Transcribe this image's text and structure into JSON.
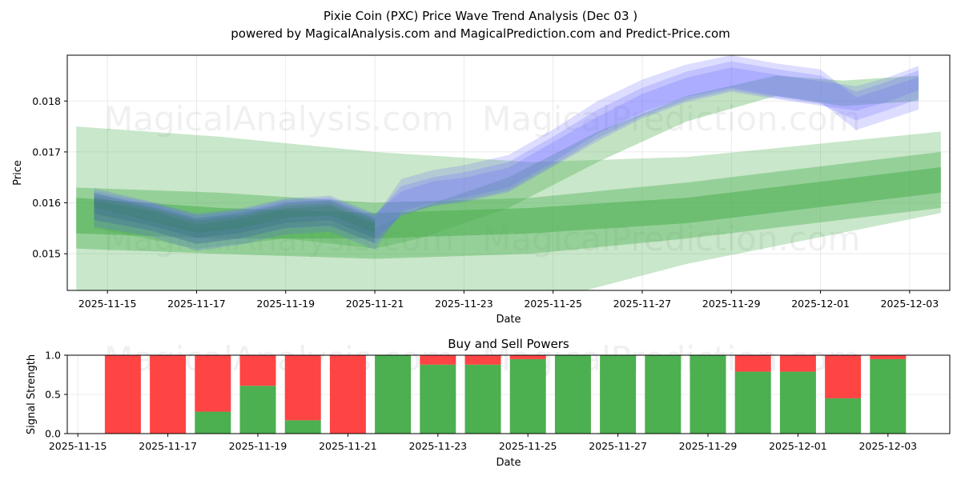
{
  "header": {
    "title": "Pixie Coin (PXC) Price Wave Trend Analysis (Dec 03 )",
    "subtitle": "powered by MagicalAnalysis.com and MagicalPrediction.com and Predict-Price.com"
  },
  "watermarks": [
    "MagicalAnalysis.com",
    "MagicalPrediction.com"
  ],
  "colors": {
    "buy": "#4caf50",
    "sell": "#ff4444",
    "band_green": "#4caf50",
    "band_blue": "#6666ff",
    "grid": "#e6e6e6"
  },
  "chart_data": [
    {
      "type": "area",
      "name": "price-wave",
      "xlabel": "Date",
      "ylabel": "Price",
      "ylim": [
        0.01428,
        0.0189
      ],
      "x_start": "2025-11-14",
      "x_tick_labels": [
        "2025-11-15",
        "2025-11-17",
        "2025-11-19",
        "2025-11-21",
        "2025-11-23",
        "2025-11-25",
        "2025-11-27",
        "2025-11-29",
        "2025-12-01",
        "2025-12-03"
      ],
      "x_tick_days": [
        1,
        3,
        5,
        7,
        9,
        11,
        13,
        15,
        17,
        19
      ],
      "y_ticks": [
        0.015,
        0.016,
        0.017,
        0.018
      ],
      "y_tick_labels": [
        "0.015",
        "0.016",
        "0.017",
        "0.018"
      ],
      "price_series": [
        {
          "name": "price-wave-1",
          "x": [
            0.7,
            2,
            3,
            4,
            5,
            6,
            7,
            7.6,
            8.3,
            9,
            10,
            11,
            12,
            13,
            14,
            15,
            16,
            17,
            17.8,
            18.5,
            19.2
          ],
          "y": [
            0.01595,
            0.01572,
            0.01548,
            0.01558,
            0.01578,
            0.01582,
            0.01548,
            0.01605,
            0.01622,
            0.01632,
            0.01652,
            0.01702,
            0.01755,
            0.01798,
            0.0183,
            0.0185,
            0.01835,
            0.01822,
            0.0179,
            0.0181,
            0.01832
          ],
          "width": 0.00028
        },
        {
          "name": "price-wave-2",
          "x": [
            0.7,
            2,
            3,
            4,
            5,
            6,
            7,
            7.6,
            8.3,
            9,
            10,
            11,
            12,
            13,
            14,
            15,
            16,
            17,
            17.8,
            18.5,
            19.2
          ],
          "y": [
            0.01585,
            0.01565,
            0.01538,
            0.0155,
            0.0157,
            0.01575,
            0.0154,
            0.01615,
            0.01632,
            0.01642,
            0.01662,
            0.01712,
            0.01768,
            0.0181,
            0.0184,
            0.01858,
            0.01842,
            0.0183,
            0.01775,
            0.01795,
            0.01815
          ],
          "width": 0.00032
        },
        {
          "name": "price-wave-3",
          "x": [
            0.7,
            2,
            3,
            4,
            5,
            6,
            7,
            7.6,
            8.3,
            9,
            10,
            11,
            12,
            13,
            14,
            15,
            16,
            17,
            17.8,
            18.5,
            19.2
          ],
          "y": [
            0.01605,
            0.01578,
            0.01555,
            0.01565,
            0.01585,
            0.0159,
            0.01555,
            0.01598,
            0.01618,
            0.01625,
            0.01645,
            0.01695,
            0.01745,
            0.0179,
            0.01822,
            0.01842,
            0.01828,
            0.01815,
            0.01805,
            0.01822,
            0.01845
          ],
          "width": 0.00024
        }
      ],
      "green_bands": [
        {
          "name": "long-range-band",
          "x": [
            0.3,
            3.5,
            7,
            10.5,
            14,
            19.7
          ],
          "lower": [
            0.0142,
            0.014,
            0.0138,
            0.014,
            0.0148,
            0.0158
          ],
          "upper": [
            0.0175,
            0.0173,
            0.017,
            0.0168,
            0.0169,
            0.0174
          ],
          "opacity": 0.3
        },
        {
          "name": "mid-range-band",
          "x": [
            0.3,
            3.5,
            7,
            10.5,
            14,
            19.7
          ],
          "lower": [
            0.0151,
            0.015,
            0.0149,
            0.015,
            0.0153,
            0.0159
          ],
          "upper": [
            0.0163,
            0.0162,
            0.016,
            0.0161,
            0.0164,
            0.017
          ],
          "opacity": 0.4
        },
        {
          "name": "core-band",
          "x": [
            0.3,
            3.5,
            7,
            10.5,
            14,
            19.7
          ],
          "lower": [
            0.0154,
            0.0153,
            0.0153,
            0.0154,
            0.0156,
            0.0162
          ],
          "upper": [
            0.0161,
            0.0159,
            0.0158,
            0.0159,
            0.0161,
            0.0167
          ],
          "opacity": 0.55
        },
        {
          "name": "trend-band-upper",
          "x": [
            0.7,
            3,
            5,
            7,
            8,
            10,
            12,
            14,
            16,
            17.5,
            19.2
          ],
          "lower": [
            0.0155,
            0.0151,
            0.0153,
            0.0151,
            0.0153,
            0.0159,
            0.0168,
            0.0176,
            0.0181,
            0.0179,
            0.018
          ],
          "upper": [
            0.0159,
            0.0155,
            0.0157,
            0.0155,
            0.0159,
            0.0165,
            0.0174,
            0.0181,
            0.0185,
            0.0184,
            0.0185
          ],
          "opacity": 0.35
        }
      ]
    },
    {
      "type": "bar",
      "name": "buy-sell-powers",
      "title": "Buy and Sell Powers",
      "xlabel": "Date",
      "ylabel": "Signal Strength",
      "ylim": [
        0,
        1
      ],
      "y_ticks": [
        0,
        0.5,
        1
      ],
      "y_tick_labels": [
        "0.0",
        "0.5",
        "1.0"
      ],
      "x_tick_labels": [
        "2025-11-15",
        "2025-11-17",
        "2025-11-19",
        "2025-11-21",
        "2025-11-23",
        "2025-11-25",
        "2025-11-27",
        "2025-11-29",
        "2025-12-01",
        "2025-12-03"
      ],
      "x_tick_days": [
        1,
        3,
        5,
        7,
        9,
        11,
        13,
        15,
        17,
        19
      ],
      "categories": [
        "2025-11-16",
        "2025-11-17",
        "2025-11-18",
        "2025-11-19",
        "2025-11-20",
        "2025-11-21",
        "2025-11-22",
        "2025-11-23",
        "2025-11-24",
        "2025-11-25",
        "2025-11-26",
        "2025-11-27",
        "2025-11-28",
        "2025-11-29",
        "2025-11-30",
        "2025-12-01",
        "2025-12-02",
        "2025-12-03"
      ],
      "series": [
        {
          "name": "Buy",
          "values": [
            0.0,
            0.0,
            0.28,
            0.61,
            0.17,
            0.0,
            1.0,
            0.88,
            0.88,
            0.95,
            1.0,
            1.0,
            1.0,
            1.0,
            0.79,
            0.79,
            0.45,
            0.95
          ]
        },
        {
          "name": "Sell",
          "values": [
            1.0,
            1.0,
            0.72,
            0.39,
            0.83,
            1.0,
            0.0,
            0.12,
            0.12,
            0.05,
            0.0,
            0.0,
            0.0,
            0.0,
            0.21,
            0.21,
            0.55,
            0.05
          ]
        }
      ]
    }
  ]
}
